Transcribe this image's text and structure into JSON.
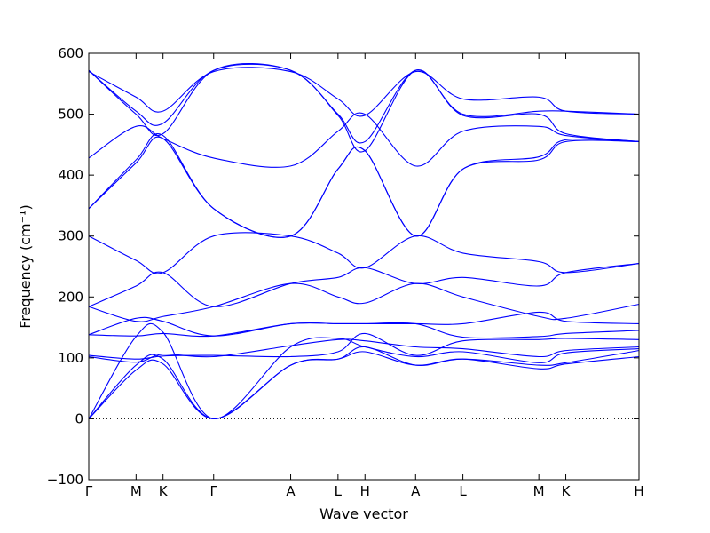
{
  "chart_data": {
    "type": "line",
    "title": "",
    "xlabel": "Wave vector",
    "ylabel": "Frequency (cm⁻¹)",
    "ylim": [
      -100,
      600
    ],
    "yticks": [
      -100,
      0,
      100,
      200,
      300,
      400,
      500,
      600
    ],
    "x_tick_labels": [
      "Γ",
      "M",
      "K",
      "Γ",
      "A",
      "L",
      "H",
      "A",
      "L",
      "M",
      "K",
      "H"
    ],
    "x_tick_positions": [
      0,
      0.86,
      1.35,
      2.27,
      3.67,
      4.53,
      5.02,
      5.94,
      6.8,
      8.18,
      8.67,
      10.0
    ],
    "zero_line": true,
    "grid": false,
    "legend": "none",
    "line_color": "#0000ff",
    "series": [
      {
        "x": [
          0,
          0.86,
          1.35,
          2.27,
          3.67,
          4.53,
          5.02,
          5.94,
          6.8,
          8.18,
          8.67,
          10.0
        ],
        "values": [
          0,
          80,
          90,
          0,
          88,
          98,
          110,
          88,
          98,
          82,
          90,
          102
        ]
      },
      {
        "x": [
          0,
          0.86,
          1.35,
          2.27,
          3.67,
          4.53,
          5.02,
          5.94,
          6.8,
          8.18,
          8.67,
          10.0
        ],
        "values": [
          0,
          88,
          98,
          0,
          88,
          98,
          118,
          88,
          98,
          88,
          92,
          112
        ]
      },
      {
        "x": [
          0,
          0.86,
          1.35,
          2.27,
          3.67,
          4.53,
          5.02,
          5.94,
          6.8,
          8.18,
          8.67,
          10.0
        ],
        "values": [
          0,
          135,
          142,
          0,
          118,
          132,
          118,
          102,
          110,
          92,
          108,
          115
        ]
      },
      {
        "x": [
          0,
          0.86,
          1.35,
          2.27,
          3.67,
          4.53,
          5.02,
          5.94,
          6.8,
          8.18,
          8.67,
          10.0
        ],
        "values": [
          102,
          93,
          106,
          102,
          120,
          130,
          128,
          118,
          115,
          102,
          112,
          118
        ]
      },
      {
        "x": [
          0,
          0.86,
          1.35,
          2.27,
          3.67,
          4.53,
          5.02,
          5.94,
          6.8,
          8.18,
          8.67,
          10.0
        ],
        "values": [
          104,
          98,
          103,
          104,
          102,
          110,
          140,
          104,
          128,
          130,
          132,
          130
        ]
      },
      {
        "x": [
          0,
          0.86,
          1.35,
          2.27,
          3.67,
          4.53,
          5.02,
          5.94,
          6.8,
          8.18,
          8.67,
          10.0
        ],
        "values": [
          138,
          136,
          140,
          136,
          156,
          156,
          156,
          156,
          134,
          135,
          140,
          145
        ]
      },
      {
        "x": [
          0,
          0.86,
          1.35,
          2.27,
          3.67,
          4.53,
          5.02,
          5.94,
          6.8,
          8.18,
          8.67,
          10.0
        ],
        "values": [
          138,
          165,
          160,
          136,
          156,
          156,
          156,
          156,
          156,
          175,
          160,
          156
        ]
      },
      {
        "x": [
          0,
          0.86,
          1.35,
          2.27,
          3.67,
          4.53,
          5.02,
          5.94,
          6.8,
          8.18,
          8.67,
          10.0
        ],
        "values": [
          184,
          160,
          168,
          184,
          222,
          200,
          190,
          222,
          200,
          168,
          165,
          188
        ]
      },
      {
        "x": [
          0,
          0.86,
          1.35,
          2.27,
          3.67,
          4.53,
          5.02,
          5.94,
          6.8,
          8.18,
          8.67,
          10.0
        ],
        "values": [
          184,
          218,
          240,
          184,
          222,
          232,
          248,
          222,
          232,
          218,
          240,
          255
        ]
      },
      {
        "x": [
          0,
          0.86,
          1.35,
          2.27,
          3.67,
          4.53,
          5.02,
          5.94,
          6.8,
          8.18,
          8.67,
          10.0
        ],
        "values": [
          300,
          260,
          240,
          300,
          300,
          272,
          248,
          300,
          272,
          258,
          240,
          255
        ]
      },
      {
        "x": [
          0,
          0.86,
          1.35,
          2.27,
          3.67,
          4.53,
          5.02,
          5.94,
          6.8,
          8.18,
          8.67,
          10.0
        ],
        "values": [
          345,
          420,
          460,
          345,
          300,
          410,
          440,
          300,
          410,
          425,
          455,
          455
        ]
      },
      {
        "x": [
          0,
          0.86,
          1.35,
          2.27,
          3.67,
          4.53,
          5.02,
          5.94,
          6.8,
          8.18,
          8.67,
          10.0
        ],
        "values": [
          345,
          425,
          465,
          345,
          300,
          410,
          440,
          300,
          410,
          430,
          458,
          455
        ]
      },
      {
        "x": [
          0,
          0.86,
          1.35,
          2.27,
          3.67,
          4.53,
          5.02,
          5.94,
          6.8,
          8.18,
          8.67,
          10.0
        ],
        "values": [
          428,
          480,
          460,
          428,
          415,
          472,
          500,
          415,
          472,
          480,
          465,
          455
        ]
      },
      {
        "x": [
          0,
          0.86,
          1.35,
          2.27,
          3.67,
          4.53,
          5.02,
          5.94,
          6.8,
          8.18,
          8.67,
          10.0
        ],
        "values": [
          572,
          500,
          468,
          572,
          572,
          498,
          440,
          572,
          498,
          500,
          468,
          455
        ]
      },
      {
        "x": [
          0,
          0.86,
          1.35,
          2.27,
          3.67,
          4.53,
          5.02,
          5.94,
          6.8,
          8.18,
          8.67,
          10.0
        ],
        "values": [
          572,
          505,
          485,
          572,
          572,
          500,
          455,
          572,
          500,
          505,
          505,
          500
        ]
      },
      {
        "x": [
          0,
          0.86,
          1.35,
          2.27,
          3.67,
          4.53,
          5.02,
          5.94,
          6.8,
          8.18,
          8.67,
          10.0
        ],
        "values": [
          570,
          528,
          505,
          570,
          570,
          525,
          498,
          570,
          525,
          528,
          505,
          500
        ]
      }
    ]
  }
}
